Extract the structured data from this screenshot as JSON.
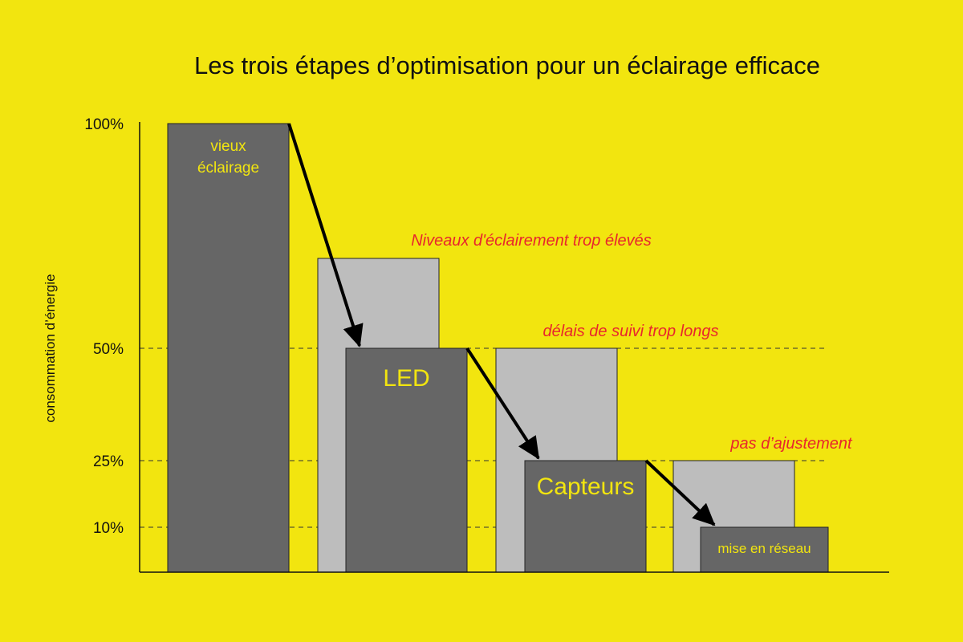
{
  "colors": {
    "background": "#f2e50f",
    "dark_bar": "#666666",
    "light_bar": "#bdbdbd",
    "bar_label": "#f2e50f",
    "annotation": "#e8262d",
    "arrow": "#000000"
  },
  "chart_data": {
    "type": "bar",
    "title": "Les trois étapes d’optimisation pour un éclairage efficace",
    "ylabel": "consommation d’énergie",
    "xlabel": "",
    "ylim": [
      0,
      100
    ],
    "yticks": [
      {
        "value": 100,
        "label": "100%"
      },
      {
        "value": 50,
        "label": "50%"
      },
      {
        "value": 25,
        "label": "25%"
      },
      {
        "value": 10,
        "label": "10%"
      }
    ],
    "gridlines": [
      50,
      25,
      10
    ],
    "steps": [
      {
        "light_value": null,
        "dark_value": 100,
        "dark_label": [
          "vieux",
          "éclairage"
        ],
        "annotation": ""
      },
      {
        "light_value": 70,
        "dark_value": 50,
        "dark_label": [
          "LED"
        ],
        "annotation": "Niveaux d'éclairement trop élevés"
      },
      {
        "light_value": 50,
        "dark_value": 25,
        "dark_label": [
          "Capteurs"
        ],
        "annotation": "délais de suivi trop longs"
      },
      {
        "light_value": 25,
        "dark_value": 10,
        "dark_label": [
          "mise en réseau"
        ],
        "annotation": "pas d’ajustement"
      }
    ],
    "arrows": [
      {
        "from_step": 0,
        "to_step": 1
      },
      {
        "from_step": 1,
        "to_step": 2
      },
      {
        "from_step": 2,
        "to_step": 3
      }
    ]
  }
}
